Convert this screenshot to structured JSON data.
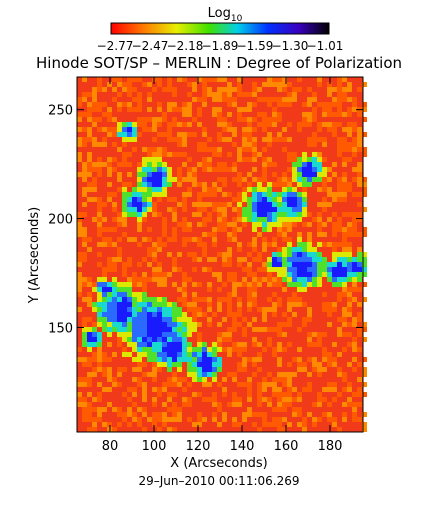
{
  "chart_data": {
    "type": "heatmap",
    "title": "Hinode SOT/SP – MERLIN : Degree of Polarization",
    "xlabel": "X (Arcseconds)",
    "ylabel": "Y (Arcseconds)",
    "xlim": [
      65,
      195
    ],
    "ylim": [
      102,
      265
    ],
    "xticks": [
      "80",
      "100",
      "120",
      "140",
      "160",
      "180"
    ],
    "yticks": [
      "150",
      "200",
      "250"
    ],
    "date_label": "29–Jun–2010 00:11:06.269",
    "colorbar": {
      "title_base": "Log",
      "title_sub": "10",
      "ticks": [
        "−2.77",
        "−2.47",
        "−2.18",
        "−1.89",
        "−1.59",
        "−1.30",
        "−1.01"
      ],
      "range": [
        -2.77,
        -1.01
      ]
    },
    "high_polarization_regions": [
      {
        "x": 100,
        "y": 218,
        "radius": 7
      },
      {
        "x": 92,
        "y": 207,
        "radius": 6
      },
      {
        "x": 88,
        "y": 240,
        "radius": 4
      },
      {
        "x": 85,
        "y": 158,
        "radius": 10
      },
      {
        "x": 100,
        "y": 150,
        "radius": 13
      },
      {
        "x": 108,
        "y": 140,
        "radius": 8
      },
      {
        "x": 123,
        "y": 134,
        "radius": 7
      },
      {
        "x": 78,
        "y": 168,
        "radius": 4
      },
      {
        "x": 150,
        "y": 205,
        "radius": 8
      },
      {
        "x": 163,
        "y": 207,
        "radius": 6
      },
      {
        "x": 170,
        "y": 222,
        "radius": 6
      },
      {
        "x": 168,
        "y": 178,
        "radius": 9
      },
      {
        "x": 184,
        "y": 176,
        "radius": 6
      },
      {
        "x": 192,
        "y": 178,
        "radius": 5
      },
      {
        "x": 156,
        "y": 180,
        "radius": 4
      },
      {
        "x": 72,
        "y": 145,
        "radius": 4
      }
    ]
  }
}
